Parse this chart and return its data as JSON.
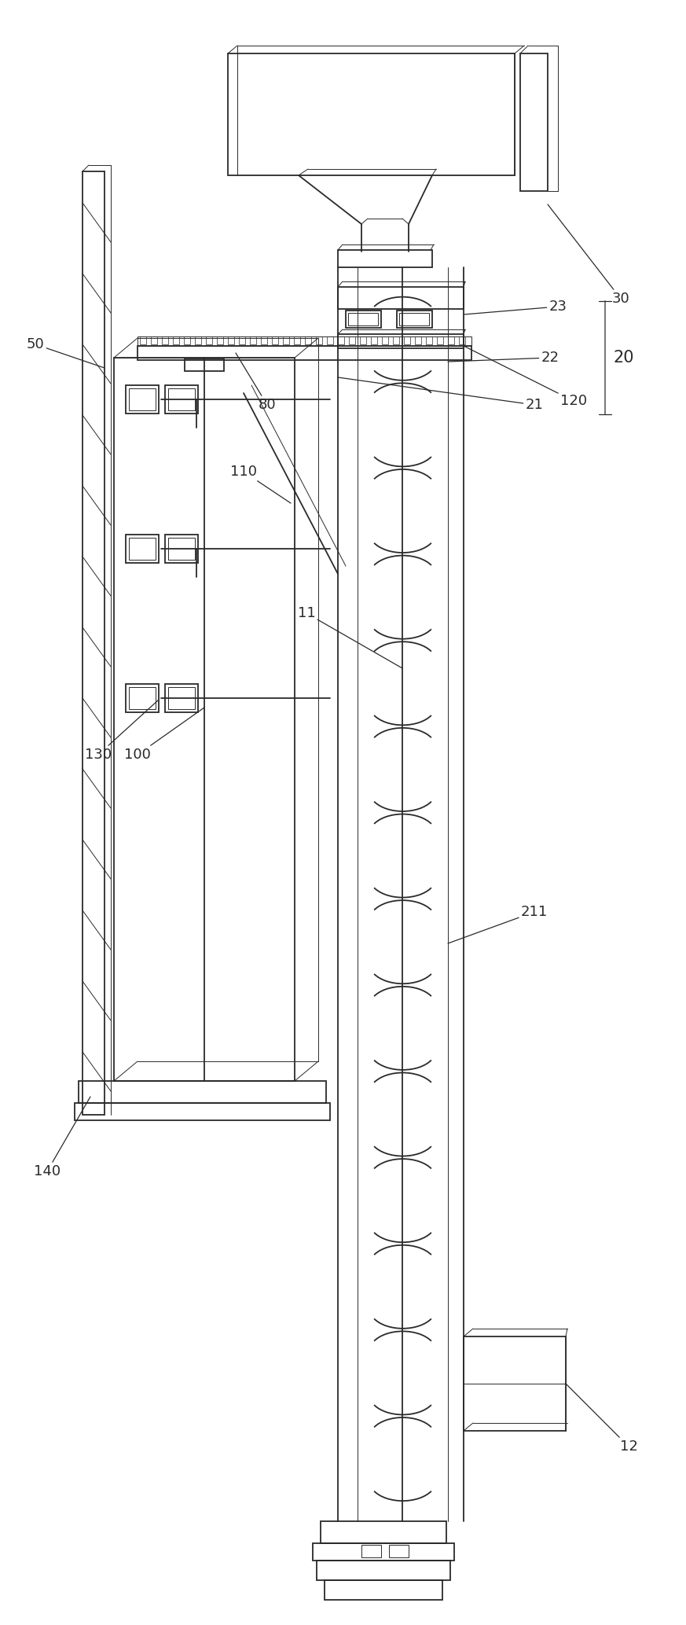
{
  "bg_color": "#ffffff",
  "line_color": "#2a2a2a",
  "lw": 1.3,
  "tlw": 0.7,
  "fig_w": 8.73,
  "fig_h": 20.67
}
